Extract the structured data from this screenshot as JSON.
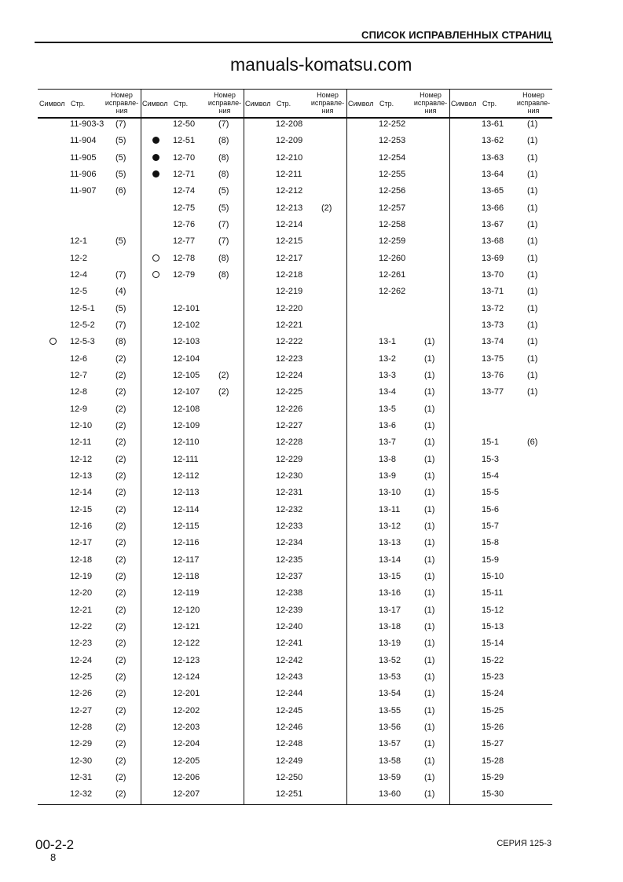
{
  "header": {
    "title": "СПИСОК ИСПРАВЛЕННЫХ СТРАНИЦ"
  },
  "table": {
    "headers": {
      "symbol": "Символ",
      "page": "Стр.",
      "revision_l1": "Номер",
      "revision_l2": "исправле-",
      "revision_l3": "ния"
    },
    "columns": [
      [
        [
          "",
          "11-903-3",
          "(7)"
        ],
        [
          "",
          "11-904",
          "(5)"
        ],
        [
          "",
          "11-905",
          "(5)"
        ],
        [
          "",
          "11-906",
          "(5)"
        ],
        [
          "",
          "11-907",
          "(6)"
        ],
        [
          "",
          "",
          ""
        ],
        [
          "",
          "",
          ""
        ],
        [
          "",
          "12-1",
          "(5)"
        ],
        [
          "",
          "12-2",
          ""
        ],
        [
          "",
          "12-4",
          "(7)"
        ],
        [
          "",
          "12-5",
          "(4)"
        ],
        [
          "",
          "12-5-1",
          "(5)"
        ],
        [
          "",
          "12-5-2",
          "(7)"
        ],
        [
          "open",
          "12-5-3",
          "(8)"
        ],
        [
          "",
          "12-6",
          "(2)"
        ],
        [
          "",
          "12-7",
          "(2)"
        ],
        [
          "",
          "12-8",
          "(2)"
        ],
        [
          "",
          "12-9",
          "(2)"
        ],
        [
          "",
          "12-10",
          "(2)"
        ],
        [
          "",
          "12-11",
          "(2)"
        ],
        [
          "",
          "12-12",
          "(2)"
        ],
        [
          "",
          "12-13",
          "(2)"
        ],
        [
          "",
          "12-14",
          "(2)"
        ],
        [
          "",
          "12-15",
          "(2)"
        ],
        [
          "",
          "12-16",
          "(2)"
        ],
        [
          "",
          "12-17",
          "(2)"
        ],
        [
          "",
          "12-18",
          "(2)"
        ],
        [
          "",
          "12-19",
          "(2)"
        ],
        [
          "",
          "12-20",
          "(2)"
        ],
        [
          "",
          "12-21",
          "(2)"
        ],
        [
          "",
          "12-22",
          "(2)"
        ],
        [
          "",
          "12-23",
          "(2)"
        ],
        [
          "",
          "12-24",
          "(2)"
        ],
        [
          "",
          "12-25",
          "(2)"
        ],
        [
          "",
          "12-26",
          "(2)"
        ],
        [
          "",
          "12-27",
          "(2)"
        ],
        [
          "",
          "12-28",
          "(2)"
        ],
        [
          "",
          "12-29",
          "(2)"
        ],
        [
          "",
          "12-30",
          "(2)"
        ],
        [
          "",
          "12-31",
          "(2)"
        ],
        [
          "",
          "12-32",
          "(2)"
        ]
      ],
      [
        [
          "",
          "12-50",
          "(7)"
        ],
        [
          "filled",
          "12-51",
          "(8)"
        ],
        [
          "filled",
          "12-70",
          "(8)"
        ],
        [
          "filled",
          "12-71",
          "(8)"
        ],
        [
          "",
          "12-74",
          "(5)"
        ],
        [
          "",
          "12-75",
          "(5)"
        ],
        [
          "",
          "12-76",
          "(7)"
        ],
        [
          "",
          "12-77",
          "(7)"
        ],
        [
          "open",
          "12-78",
          "(8)"
        ],
        [
          "open",
          "12-79",
          "(8)"
        ],
        [
          "",
          "",
          ""
        ],
        [
          "",
          "12-101",
          ""
        ],
        [
          "",
          "12-102",
          ""
        ],
        [
          "",
          "12-103",
          ""
        ],
        [
          "",
          "12-104",
          ""
        ],
        [
          "",
          "12-105",
          "(2)"
        ],
        [
          "",
          "12-107",
          "(2)"
        ],
        [
          "",
          "12-108",
          ""
        ],
        [
          "",
          "12-109",
          ""
        ],
        [
          "",
          "12-110",
          ""
        ],
        [
          "",
          "12-111",
          ""
        ],
        [
          "",
          "12-112",
          ""
        ],
        [
          "",
          "12-113",
          ""
        ],
        [
          "",
          "12-114",
          ""
        ],
        [
          "",
          "12-115",
          ""
        ],
        [
          "",
          "12-116",
          ""
        ],
        [
          "",
          "12-117",
          ""
        ],
        [
          "",
          "12-118",
          ""
        ],
        [
          "",
          "12-119",
          ""
        ],
        [
          "",
          "12-120",
          ""
        ],
        [
          "",
          "12-121",
          ""
        ],
        [
          "",
          "12-122",
          ""
        ],
        [
          "",
          "12-123",
          ""
        ],
        [
          "",
          "12-124",
          ""
        ],
        [
          "",
          "12-201",
          ""
        ],
        [
          "",
          "12-202",
          ""
        ],
        [
          "",
          "12-203",
          ""
        ],
        [
          "",
          "12-204",
          ""
        ],
        [
          "",
          "12-205",
          ""
        ],
        [
          "",
          "12-206",
          ""
        ],
        [
          "",
          "12-207",
          ""
        ]
      ],
      [
        [
          "",
          "12-208",
          ""
        ],
        [
          "",
          "12-209",
          ""
        ],
        [
          "",
          "12-210",
          ""
        ],
        [
          "",
          "12-211",
          ""
        ],
        [
          "",
          "12-212",
          ""
        ],
        [
          "",
          "12-213",
          "(2)"
        ],
        [
          "",
          "12-214",
          ""
        ],
        [
          "",
          "12-215",
          ""
        ],
        [
          "",
          "12-217",
          ""
        ],
        [
          "",
          "12-218",
          ""
        ],
        [
          "",
          "12-219",
          ""
        ],
        [
          "",
          "12-220",
          ""
        ],
        [
          "",
          "12-221",
          ""
        ],
        [
          "",
          "12-222",
          ""
        ],
        [
          "",
          "12-223",
          ""
        ],
        [
          "",
          "12-224",
          ""
        ],
        [
          "",
          "12-225",
          ""
        ],
        [
          "",
          "12-226",
          ""
        ],
        [
          "",
          "12-227",
          ""
        ],
        [
          "",
          "12-228",
          ""
        ],
        [
          "",
          "12-229",
          ""
        ],
        [
          "",
          "12-230",
          ""
        ],
        [
          "",
          "12-231",
          ""
        ],
        [
          "",
          "12-232",
          ""
        ],
        [
          "",
          "12-233",
          ""
        ],
        [
          "",
          "12-234",
          ""
        ],
        [
          "",
          "12-235",
          ""
        ],
        [
          "",
          "12-237",
          ""
        ],
        [
          "",
          "12-238",
          ""
        ],
        [
          "",
          "12-239",
          ""
        ],
        [
          "",
          "12-240",
          ""
        ],
        [
          "",
          "12-241",
          ""
        ],
        [
          "",
          "12-242",
          ""
        ],
        [
          "",
          "12-243",
          ""
        ],
        [
          "",
          "12-244",
          ""
        ],
        [
          "",
          "12-245",
          ""
        ],
        [
          "",
          "12-246",
          ""
        ],
        [
          "",
          "12-248",
          ""
        ],
        [
          "",
          "12-249",
          ""
        ],
        [
          "",
          "12-250",
          ""
        ],
        [
          "",
          "12-251",
          ""
        ]
      ],
      [
        [
          "",
          "12-252",
          ""
        ],
        [
          "",
          "12-253",
          ""
        ],
        [
          "",
          "12-254",
          ""
        ],
        [
          "",
          "12-255",
          ""
        ],
        [
          "",
          "12-256",
          ""
        ],
        [
          "",
          "12-257",
          ""
        ],
        [
          "",
          "12-258",
          ""
        ],
        [
          "",
          "12-259",
          ""
        ],
        [
          "",
          "12-260",
          ""
        ],
        [
          "",
          "12-261",
          ""
        ],
        [
          "",
          "12-262",
          ""
        ],
        [
          "",
          "",
          ""
        ],
        [
          "",
          "",
          ""
        ],
        [
          "",
          "13-1",
          "(1)"
        ],
        [
          "",
          "13-2",
          "(1)"
        ],
        [
          "",
          "13-3",
          "(1)"
        ],
        [
          "",
          "13-4",
          "(1)"
        ],
        [
          "",
          "13-5",
          "(1)"
        ],
        [
          "",
          "13-6",
          "(1)"
        ],
        [
          "",
          "13-7",
          "(1)"
        ],
        [
          "",
          "13-8",
          "(1)"
        ],
        [
          "",
          "13-9",
          "(1)"
        ],
        [
          "",
          "13-10",
          "(1)"
        ],
        [
          "",
          "13-11",
          "(1)"
        ],
        [
          "",
          "13-12",
          "(1)"
        ],
        [
          "",
          "13-13",
          "(1)"
        ],
        [
          "",
          "13-14",
          "(1)"
        ],
        [
          "",
          "13-15",
          "(1)"
        ],
        [
          "",
          "13-16",
          "(1)"
        ],
        [
          "",
          "13-17",
          "(1)"
        ],
        [
          "",
          "13-18",
          "(1)"
        ],
        [
          "",
          "13-19",
          "(1)"
        ],
        [
          "",
          "13-52",
          "(1)"
        ],
        [
          "",
          "13-53",
          "(1)"
        ],
        [
          "",
          "13-54",
          "(1)"
        ],
        [
          "",
          "13-55",
          "(1)"
        ],
        [
          "",
          "13-56",
          "(1)"
        ],
        [
          "",
          "13-57",
          "(1)"
        ],
        [
          "",
          "13-58",
          "(1)"
        ],
        [
          "",
          "13-59",
          "(1)"
        ],
        [
          "",
          "13-60",
          "(1)"
        ]
      ],
      [
        [
          "",
          "13-61",
          "(1)"
        ],
        [
          "",
          "13-62",
          "(1)"
        ],
        [
          "",
          "13-63",
          "(1)"
        ],
        [
          "",
          "13-64",
          "(1)"
        ],
        [
          "",
          "13-65",
          "(1)"
        ],
        [
          "",
          "13-66",
          "(1)"
        ],
        [
          "",
          "13-67",
          "(1)"
        ],
        [
          "",
          "13-68",
          "(1)"
        ],
        [
          "",
          "13-69",
          "(1)"
        ],
        [
          "",
          "13-70",
          "(1)"
        ],
        [
          "",
          "13-71",
          "(1)"
        ],
        [
          "",
          "13-72",
          "(1)"
        ],
        [
          "",
          "13-73",
          "(1)"
        ],
        [
          "",
          "13-74",
          "(1)"
        ],
        [
          "",
          "13-75",
          "(1)"
        ],
        [
          "",
          "13-76",
          "(1)"
        ],
        [
          "",
          "13-77",
          "(1)"
        ],
        [
          "",
          "",
          ""
        ],
        [
          "",
          "",
          ""
        ],
        [
          "",
          "15-1",
          "(6)"
        ],
        [
          "",
          "15-3",
          ""
        ],
        [
          "",
          "15-4",
          ""
        ],
        [
          "",
          "15-5",
          ""
        ],
        [
          "",
          "15-6",
          ""
        ],
        [
          "",
          "15-7",
          ""
        ],
        [
          "",
          "15-8",
          ""
        ],
        [
          "",
          "15-9",
          ""
        ],
        [
          "",
          "15-10",
          ""
        ],
        [
          "",
          "15-11",
          ""
        ],
        [
          "",
          "15-12",
          ""
        ],
        [
          "",
          "15-13",
          ""
        ],
        [
          "",
          "15-14",
          ""
        ],
        [
          "",
          "15-22",
          ""
        ],
        [
          "",
          "15-23",
          ""
        ],
        [
          "",
          "15-24",
          ""
        ],
        [
          "",
          "15-25",
          ""
        ],
        [
          "",
          "15-26",
          ""
        ],
        [
          "",
          "15-27",
          ""
        ],
        [
          "",
          "15-28",
          ""
        ],
        [
          "",
          "15-29",
          ""
        ],
        [
          "",
          "15-30",
          ""
        ]
      ]
    ]
  },
  "watermark": "manuals-komatsu.com",
  "footer": {
    "doc_code": "00-2-2",
    "page_number": "8",
    "series": "СЕРИЯ 125-3"
  }
}
